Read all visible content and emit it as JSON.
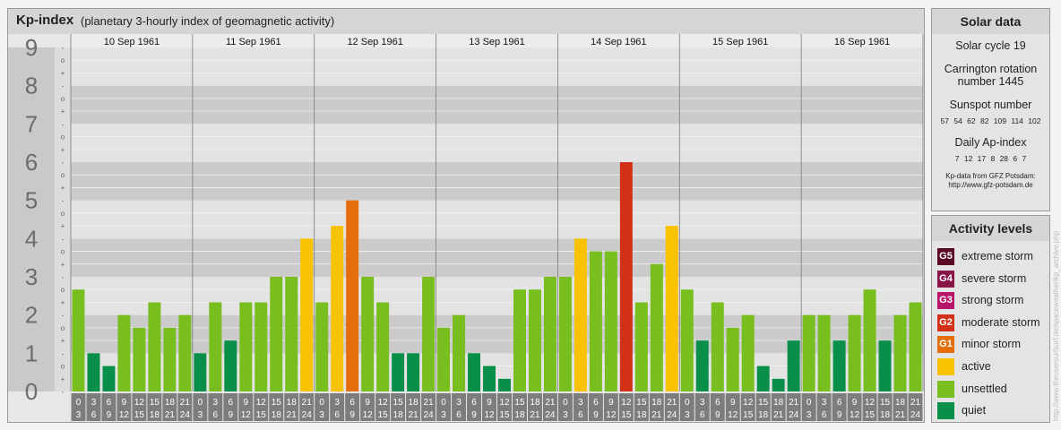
{
  "header": {
    "title": "Kp-index",
    "subtitle": "(planetary 3-hourly index of geomagnetic activity)"
  },
  "chart_data": {
    "type": "bar",
    "y_labels": [
      "0",
      "1",
      "2",
      "3",
      "4",
      "5",
      "6",
      "7",
      "8",
      "9"
    ],
    "sub_labels": [
      "-",
      "+",
      "o"
    ],
    "ylim": [
      0,
      9
    ],
    "days": [
      "10 Sep 1961",
      "11 Sep 1961",
      "12 Sep 1961",
      "13 Sep 1961",
      "14 Sep 1961",
      "15 Sep 1961",
      "16 Sep 1961"
    ],
    "interval_labels": [
      [
        "0",
        "3"
      ],
      [
        "3",
        "6"
      ],
      [
        "6",
        "9"
      ],
      [
        "9",
        "12"
      ],
      [
        "12",
        "15"
      ],
      [
        "15",
        "18"
      ],
      [
        "18",
        "21"
      ],
      [
        "21",
        "24"
      ]
    ],
    "values": [
      [
        2.667,
        1.0,
        0.667,
        2.0,
        1.667,
        2.333,
        1.667,
        2.0
      ],
      [
        1.0,
        2.333,
        1.333,
        2.333,
        2.333,
        3.0,
        3.0,
        4.0
      ],
      [
        2.333,
        4.333,
        5.0,
        3.0,
        2.333,
        1.0,
        1.0,
        3.0
      ],
      [
        1.667,
        2.0,
        1.0,
        0.667,
        0.333,
        2.667,
        2.667,
        3.0
      ],
      [
        3.0,
        4.0,
        3.667,
        3.667,
        6.0,
        2.333,
        3.333,
        4.333
      ],
      [
        2.667,
        1.333,
        2.333,
        1.667,
        2.0,
        0.667,
        0.333,
        1.333
      ],
      [
        2.0,
        2.0,
        1.333,
        2.0,
        2.667,
        1.333,
        2.0,
        2.333
      ]
    ],
    "level_colors": {
      "quiet": "#0a8f4a",
      "unsettled": "#77be1e",
      "active": "#f8c200",
      "minor": "#e46e0c",
      "moderate": "#d23118"
    }
  },
  "solar": {
    "title": "Solar data",
    "cycle": "Solar cycle 19",
    "carrington_line1": "Carrington rotation",
    "carrington_line2": "number 1445",
    "sunspot_title": "Sunspot number",
    "sunspot_values": "57 54 62 82 109 114 102",
    "ap_title": "Daily Ap-index",
    "ap_values": "7 12 17 8 28 6 7",
    "source_line1": "Kp-data from GFZ Potsdam:",
    "source_line2": "http://www.gfz-potsdam.de"
  },
  "legend": {
    "title": "Activity levels",
    "items": [
      {
        "badge": "G5",
        "label": "extreme storm",
        "color": "#5a0a22"
      },
      {
        "badge": "G4",
        "label": "severe storm",
        "color": "#8a1447"
      },
      {
        "badge": "G3",
        "label": "strong storm",
        "color": "#b8156a"
      },
      {
        "badge": "G2",
        "label": "moderate storm",
        "color": "#d23118"
      },
      {
        "badge": "G1",
        "label": "minor storm",
        "color": "#e46e0c"
      },
      {
        "badge": "",
        "label": "active",
        "color": "#f8c200"
      },
      {
        "badge": "",
        "label": "unsettled",
        "color": "#77be1e"
      },
      {
        "badge": "",
        "label": "quiet",
        "color": "#0a8f4a"
      }
    ]
  },
  "watermark": "http://www.theusersurfsurf.de/spaceweather/kp_archive.php"
}
